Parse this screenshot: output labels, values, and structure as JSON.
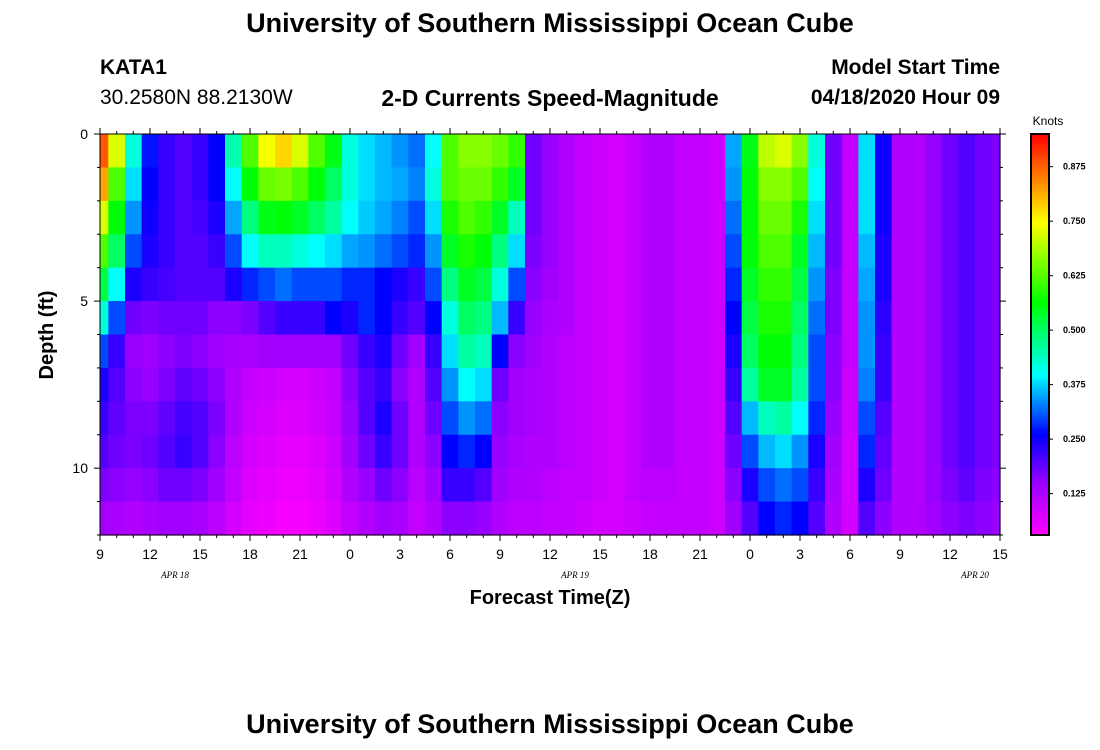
{
  "page": {
    "title_top": "University of Southern Mississippi Ocean Cube",
    "title_bottom": "University of Southern Mississippi Ocean Cube",
    "station": "KATA1",
    "coords": "30.2580N 88.2130W",
    "plot_title": "2-D Currents Speed-Magnitude",
    "model_label": "Model Start Time",
    "model_time": "04/18/2020 Hour 09"
  },
  "colors": {
    "colormap": [
      "#ff00ff",
      "#9900ff",
      "#0000ff",
      "#00ffff",
      "#00ff00",
      "#ffff00",
      "#ff0000"
    ]
  },
  "chart_data": {
    "type": "heatmap",
    "xlabel": "Forecast Time(Z)",
    "ylabel": "Depth (ft)",
    "colorbar_label": "Knots",
    "colorbar_ticks": [
      "0.125",
      "0.250",
      "0.375",
      "0.500",
      "0.625",
      "0.750",
      "0.875"
    ],
    "colorbar_range": [
      0.03,
      0.95
    ],
    "x_range_hours": [
      9,
      63
    ],
    "x_tick_labels": [
      "9",
      "12",
      "15",
      "18",
      "21",
      "0",
      "3",
      "6",
      "9",
      "12",
      "15",
      "18",
      "21",
      "0",
      "3",
      "6",
      "9",
      "12",
      "15"
    ],
    "date_labels": [
      "APR 18",
      "APR 19",
      "APR 20"
    ],
    "y_range": [
      0,
      12
    ],
    "y_ticks": [
      0,
      5,
      10
    ],
    "depth_levels_ft": [
      0.5,
      1.5,
      2.5,
      3.5,
      4.5,
      5.5,
      6.5,
      7.5,
      8.5,
      9.5,
      10.5,
      11.5
    ],
    "time_hours": [
      9,
      10,
      11,
      12,
      13,
      14,
      15,
      16,
      17,
      18,
      19,
      20,
      21,
      22,
      23,
      24,
      25,
      26,
      27,
      28,
      29,
      30,
      31,
      32,
      33,
      34,
      35,
      36,
      37,
      38,
      39,
      40,
      41,
      42,
      43,
      44,
      45,
      46,
      47,
      48,
      49,
      50,
      51,
      52,
      53,
      54,
      55,
      56,
      57,
      58,
      59,
      60,
      61,
      62,
      63
    ],
    "speed_knots": [
      [
        0.88,
        0.72,
        0.42,
        0.27,
        0.22,
        0.2,
        0.22,
        0.26,
        0.45,
        0.62,
        0.74,
        0.78,
        0.72,
        0.62,
        0.55,
        0.42,
        0.38,
        0.36,
        0.34,
        0.32,
        0.4,
        0.62,
        0.66,
        0.66,
        0.64,
        0.6,
        0.18,
        0.15,
        0.12,
        0.1,
        0.09,
        0.08,
        0.1,
        0.12,
        0.12,
        0.1,
        0.1,
        0.09,
        0.35,
        0.55,
        0.7,
        0.72,
        0.66,
        0.42,
        0.18,
        0.1,
        0.38,
        0.25,
        0.12,
        0.12,
        0.15,
        0.18,
        0.2,
        0.18,
        0.17
      ],
      [
        0.82,
        0.62,
        0.38,
        0.26,
        0.22,
        0.2,
        0.22,
        0.26,
        0.4,
        0.56,
        0.64,
        0.65,
        0.62,
        0.56,
        0.5,
        0.42,
        0.38,
        0.36,
        0.35,
        0.33,
        0.42,
        0.62,
        0.64,
        0.64,
        0.6,
        0.54,
        0.18,
        0.15,
        0.12,
        0.1,
        0.09,
        0.08,
        0.1,
        0.12,
        0.12,
        0.1,
        0.1,
        0.09,
        0.34,
        0.56,
        0.66,
        0.66,
        0.62,
        0.4,
        0.18,
        0.1,
        0.38,
        0.25,
        0.12,
        0.12,
        0.15,
        0.18,
        0.2,
        0.18,
        0.17
      ],
      [
        0.72,
        0.56,
        0.34,
        0.25,
        0.22,
        0.2,
        0.21,
        0.24,
        0.35,
        0.48,
        0.55,
        0.56,
        0.54,
        0.5,
        0.46,
        0.4,
        0.37,
        0.35,
        0.33,
        0.3,
        0.38,
        0.58,
        0.62,
        0.6,
        0.54,
        0.44,
        0.18,
        0.15,
        0.12,
        0.1,
        0.09,
        0.08,
        0.1,
        0.12,
        0.12,
        0.1,
        0.1,
        0.09,
        0.32,
        0.56,
        0.64,
        0.64,
        0.58,
        0.38,
        0.18,
        0.1,
        0.38,
        0.25,
        0.12,
        0.12,
        0.15,
        0.18,
        0.2,
        0.18,
        0.17
      ],
      [
        0.62,
        0.5,
        0.3,
        0.24,
        0.22,
        0.2,
        0.2,
        0.22,
        0.3,
        0.4,
        0.44,
        0.44,
        0.42,
        0.4,
        0.38,
        0.35,
        0.34,
        0.32,
        0.3,
        0.28,
        0.34,
        0.54,
        0.58,
        0.56,
        0.48,
        0.38,
        0.17,
        0.15,
        0.12,
        0.1,
        0.09,
        0.08,
        0.1,
        0.12,
        0.12,
        0.1,
        0.1,
        0.09,
        0.3,
        0.56,
        0.62,
        0.62,
        0.54,
        0.36,
        0.18,
        0.1,
        0.36,
        0.24,
        0.12,
        0.12,
        0.15,
        0.18,
        0.2,
        0.18,
        0.17
      ],
      [
        0.52,
        0.4,
        0.24,
        0.22,
        0.21,
        0.2,
        0.2,
        0.2,
        0.24,
        0.28,
        0.3,
        0.32,
        0.3,
        0.3,
        0.3,
        0.28,
        0.28,
        0.26,
        0.24,
        0.22,
        0.3,
        0.48,
        0.54,
        0.52,
        0.42,
        0.3,
        0.16,
        0.14,
        0.12,
        0.1,
        0.09,
        0.08,
        0.1,
        0.12,
        0.12,
        0.1,
        0.1,
        0.09,
        0.28,
        0.54,
        0.6,
        0.6,
        0.52,
        0.34,
        0.17,
        0.1,
        0.35,
        0.24,
        0.12,
        0.12,
        0.15,
        0.18,
        0.2,
        0.18,
        0.17
      ],
      [
        0.42,
        0.3,
        0.18,
        0.17,
        0.18,
        0.18,
        0.18,
        0.16,
        0.16,
        0.17,
        0.2,
        0.22,
        0.22,
        0.22,
        0.26,
        0.24,
        0.28,
        0.26,
        0.22,
        0.2,
        0.26,
        0.42,
        0.5,
        0.48,
        0.36,
        0.22,
        0.15,
        0.13,
        0.12,
        0.1,
        0.09,
        0.08,
        0.1,
        0.12,
        0.12,
        0.1,
        0.1,
        0.09,
        0.26,
        0.52,
        0.58,
        0.58,
        0.5,
        0.32,
        0.17,
        0.1,
        0.34,
        0.23,
        0.12,
        0.12,
        0.15,
        0.18,
        0.2,
        0.18,
        0.17
      ],
      [
        0.3,
        0.22,
        0.15,
        0.14,
        0.16,
        0.17,
        0.16,
        0.14,
        0.13,
        0.13,
        0.14,
        0.14,
        0.14,
        0.14,
        0.14,
        0.18,
        0.22,
        0.24,
        0.18,
        0.14,
        0.22,
        0.38,
        0.46,
        0.44,
        0.26,
        0.16,
        0.14,
        0.12,
        0.11,
        0.1,
        0.09,
        0.08,
        0.1,
        0.12,
        0.12,
        0.1,
        0.1,
        0.09,
        0.24,
        0.5,
        0.56,
        0.56,
        0.48,
        0.3,
        0.16,
        0.1,
        0.34,
        0.22,
        0.12,
        0.12,
        0.15,
        0.18,
        0.2,
        0.18,
        0.17
      ],
      [
        0.24,
        0.2,
        0.16,
        0.15,
        0.17,
        0.19,
        0.18,
        0.16,
        0.12,
        0.1,
        0.09,
        0.08,
        0.08,
        0.09,
        0.1,
        0.16,
        0.2,
        0.22,
        0.16,
        0.12,
        0.2,
        0.34,
        0.4,
        0.38,
        0.18,
        0.14,
        0.13,
        0.12,
        0.11,
        0.1,
        0.09,
        0.08,
        0.1,
        0.12,
        0.12,
        0.1,
        0.1,
        0.09,
        0.22,
        0.46,
        0.54,
        0.54,
        0.46,
        0.3,
        0.16,
        0.09,
        0.33,
        0.22,
        0.12,
        0.12,
        0.15,
        0.18,
        0.2,
        0.18,
        0.17
      ],
      [
        0.22,
        0.19,
        0.17,
        0.17,
        0.19,
        0.21,
        0.2,
        0.17,
        0.12,
        0.09,
        0.08,
        0.07,
        0.07,
        0.08,
        0.1,
        0.15,
        0.2,
        0.24,
        0.18,
        0.12,
        0.18,
        0.3,
        0.34,
        0.32,
        0.16,
        0.14,
        0.13,
        0.12,
        0.11,
        0.1,
        0.09,
        0.08,
        0.1,
        0.12,
        0.12,
        0.1,
        0.1,
        0.09,
        0.2,
        0.36,
        0.44,
        0.46,
        0.4,
        0.28,
        0.15,
        0.09,
        0.3,
        0.2,
        0.12,
        0.12,
        0.15,
        0.18,
        0.2,
        0.18,
        0.17
      ],
      [
        0.2,
        0.18,
        0.17,
        0.18,
        0.2,
        0.22,
        0.2,
        0.16,
        0.11,
        0.08,
        0.07,
        0.06,
        0.06,
        0.07,
        0.09,
        0.14,
        0.18,
        0.22,
        0.18,
        0.12,
        0.16,
        0.26,
        0.28,
        0.26,
        0.15,
        0.13,
        0.12,
        0.12,
        0.11,
        0.1,
        0.09,
        0.08,
        0.1,
        0.12,
        0.12,
        0.1,
        0.1,
        0.09,
        0.18,
        0.3,
        0.36,
        0.38,
        0.34,
        0.24,
        0.14,
        0.08,
        0.28,
        0.19,
        0.12,
        0.12,
        0.15,
        0.18,
        0.2,
        0.18,
        0.17
      ],
      [
        0.17,
        0.16,
        0.15,
        0.16,
        0.18,
        0.18,
        0.17,
        0.14,
        0.1,
        0.07,
        0.06,
        0.05,
        0.05,
        0.06,
        0.08,
        0.12,
        0.15,
        0.18,
        0.16,
        0.11,
        0.14,
        0.22,
        0.22,
        0.2,
        0.14,
        0.12,
        0.12,
        0.11,
        0.1,
        0.1,
        0.09,
        0.08,
        0.1,
        0.11,
        0.11,
        0.1,
        0.1,
        0.09,
        0.16,
        0.24,
        0.3,
        0.32,
        0.3,
        0.22,
        0.13,
        0.08,
        0.24,
        0.18,
        0.12,
        0.12,
        0.15,
        0.17,
        0.19,
        0.17,
        0.16
      ],
      [
        0.14,
        0.13,
        0.12,
        0.13,
        0.14,
        0.14,
        0.13,
        0.11,
        0.08,
        0.06,
        0.05,
        0.04,
        0.04,
        0.05,
        0.07,
        0.1,
        0.12,
        0.14,
        0.13,
        0.1,
        0.12,
        0.16,
        0.16,
        0.15,
        0.12,
        0.11,
        0.11,
        0.1,
        0.1,
        0.09,
        0.08,
        0.08,
        0.09,
        0.1,
        0.1,
        0.1,
        0.1,
        0.09,
        0.14,
        0.2,
        0.26,
        0.28,
        0.26,
        0.2,
        0.12,
        0.08,
        0.2,
        0.16,
        0.12,
        0.12,
        0.14,
        0.16,
        0.17,
        0.16,
        0.15
      ]
    ]
  }
}
